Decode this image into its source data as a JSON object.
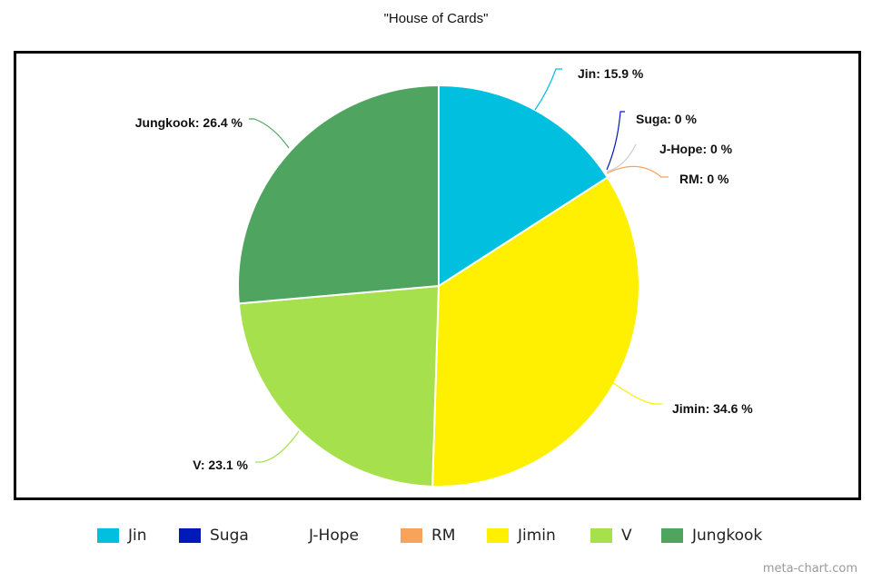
{
  "chart_data": {
    "type": "pie",
    "title": "\"House of Cards\"",
    "slices": [
      {
        "name": "Jin",
        "value": 15.9,
        "label": "Jin: 15.9 %",
        "color": "#00bfdf"
      },
      {
        "name": "Suga",
        "value": 0,
        "label": "Suga: 0 %",
        "color": "#0019b8"
      },
      {
        "name": "J-Hope",
        "value": 0,
        "label": "J-Hope: 0 %",
        "color": "#ffffff"
      },
      {
        "name": "RM",
        "value": 0,
        "label": "RM: 0 %",
        "color": "#f7a35c"
      },
      {
        "name": "Jimin",
        "value": 34.6,
        "label": "Jimin: 34.6 %",
        "color": "#ffef00"
      },
      {
        "name": "V",
        "value": 23.1,
        "label": "V: 23.1 %",
        "color": "#a6e04c"
      },
      {
        "name": "Jungkook",
        "value": 26.4,
        "label": "Jungkook: 26.4 %",
        "color": "#4fa55f"
      }
    ],
    "legend": [
      "Jin",
      "Suga",
      "J-Hope",
      "RM",
      "Jimin",
      "V",
      "Jungkook"
    ],
    "legend_position": "bottom"
  },
  "watermark": "meta-chart.com"
}
